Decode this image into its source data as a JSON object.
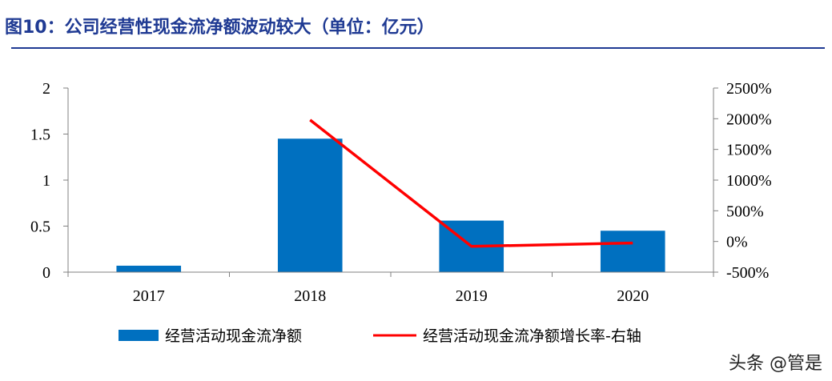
{
  "figure_title": "图10：公司经营性现金流净额波动较大（单位：亿元）",
  "watermark": "头条 @管是",
  "colors": {
    "bar": "#0070c0",
    "line": "#ff0000",
    "title": "#1f3a93"
  },
  "chart_data": {
    "type": "bar",
    "categories": [
      "2017",
      "2018",
      "2019",
      "2020"
    ],
    "series": [
      {
        "name": "经营活动现金流净额",
        "type": "bar",
        "axis": "left",
        "values": [
          0.07,
          1.45,
          0.56,
          0.45
        ]
      },
      {
        "name": "经营活动现金流净额增长率-右轴",
        "type": "line",
        "axis": "right",
        "values": [
          null,
          1980,
          -80,
          -25
        ]
      }
    ],
    "y_left": {
      "ylim": [
        0,
        2
      ],
      "ticks": [
        "0",
        "0.5",
        "1",
        "1.5",
        "2"
      ],
      "tick_values": [
        0,
        0.5,
        1,
        1.5,
        2
      ]
    },
    "y_right": {
      "ylim": [
        -500,
        2500
      ],
      "ticks": [
        "-500%",
        "0%",
        "500%",
        "1000%",
        "1500%",
        "2000%",
        "2500%"
      ],
      "tick_values": [
        -500,
        0,
        500,
        1000,
        1500,
        2000,
        2500
      ]
    },
    "legend_position": "bottom",
    "grid": false
  }
}
